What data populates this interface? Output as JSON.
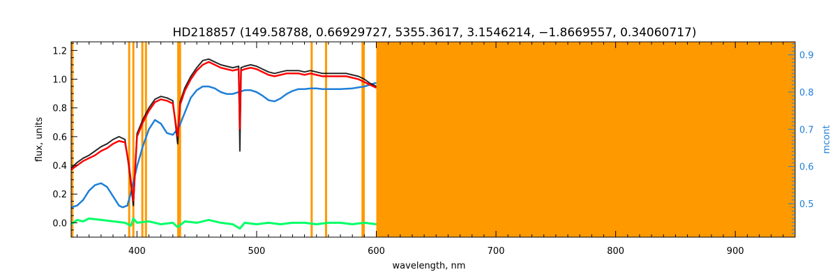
{
  "chart_data": {
    "type": "line",
    "title": "HD218857    (149.58788, 0.66929727, 5355.3617, 3.1546214, −1.8669557, 0.34060717)",
    "xlabel": "wavelength, nm",
    "ylabel": "flux, units",
    "ylabel_right": "mcont",
    "xlim": [
      345,
      950
    ],
    "ylim": [
      -0.1,
      1.26
    ],
    "ylim_right": [
      0.41,
      0.935
    ],
    "x_ticks": [
      400,
      500,
      600,
      700,
      800,
      900
    ],
    "y_ticks": [
      0.0,
      0.2,
      0.4,
      0.6,
      0.8,
      1.0,
      1.2
    ],
    "y_ticks_right": [
      0.5,
      0.6,
      0.7,
      0.8,
      0.9
    ],
    "grid": false,
    "colors": {
      "observed": "#000000",
      "model": "#ff0000",
      "residual": "#00ff66",
      "continuum": "#1e7fd8",
      "masked": "#ff9900",
      "right_axis": "#1e7fd8"
    },
    "masked_region": [
      600,
      950
    ],
    "masked_lines": [
      346,
      393.5,
      397,
      404.5,
      407.5,
      434.5,
      436,
      546,
      558,
      588.5,
      589.5
    ],
    "series": [
      {
        "role": "continuum",
        "axis": "right",
        "x": [
          345,
          350,
          355,
          360,
          365,
          370,
          375,
          380,
          385,
          388,
          392,
          395,
          400,
          405,
          410,
          415,
          420,
          425,
          430,
          435,
          440,
          445,
          450,
          455,
          460,
          465,
          470,
          475,
          480,
          485,
          490,
          495,
          500,
          505,
          510,
          515,
          520,
          525,
          530,
          535,
          540,
          545,
          550,
          555,
          560,
          570,
          580,
          590,
          600
        ],
        "y": [
          0.49,
          0.495,
          0.51,
          0.535,
          0.55,
          0.555,
          0.545,
          0.52,
          0.495,
          0.49,
          0.495,
          0.53,
          0.6,
          0.655,
          0.7,
          0.725,
          0.715,
          0.69,
          0.685,
          0.705,
          0.745,
          0.785,
          0.805,
          0.815,
          0.815,
          0.81,
          0.8,
          0.795,
          0.795,
          0.8,
          0.805,
          0.805,
          0.8,
          0.79,
          0.778,
          0.775,
          0.783,
          0.795,
          0.803,
          0.808,
          0.808,
          0.81,
          0.81,
          0.808,
          0.808,
          0.808,
          0.81,
          0.815,
          0.825
        ]
      },
      {
        "role": "model",
        "axis": "left",
        "x": [
          345,
          350,
          355,
          360,
          365,
          370,
          375,
          380,
          385,
          390,
          393,
          397,
          400,
          405,
          410,
          415,
          420,
          425,
          430,
          434,
          436,
          440,
          445,
          450,
          455,
          460,
          465,
          470,
          475,
          480,
          485,
          486,
          487,
          490,
          495,
          500,
          505,
          510,
          515,
          520,
          525,
          530,
          535,
          540,
          545,
          550,
          555,
          560,
          565,
          570,
          575,
          580,
          585,
          590,
          595,
          600
        ],
        "y": [
          0.37,
          0.4,
          0.43,
          0.45,
          0.47,
          0.5,
          0.52,
          0.55,
          0.57,
          0.56,
          0.42,
          0.15,
          0.6,
          0.7,
          0.78,
          0.84,
          0.86,
          0.85,
          0.83,
          0.6,
          0.82,
          0.92,
          1.0,
          1.06,
          1.1,
          1.12,
          1.1,
          1.08,
          1.07,
          1.06,
          1.07,
          0.65,
          1.06,
          1.07,
          1.08,
          1.07,
          1.05,
          1.03,
          1.02,
          1.03,
          1.04,
          1.04,
          1.04,
          1.03,
          1.04,
          1.03,
          1.02,
          1.02,
          1.02,
          1.02,
          1.02,
          1.01,
          1.0,
          0.98,
          0.96,
          0.94
        ]
      },
      {
        "role": "observed",
        "axis": "left",
        "x": [
          345,
          350,
          355,
          360,
          365,
          370,
          375,
          380,
          385,
          390,
          393,
          397,
          400,
          405,
          410,
          415,
          420,
          425,
          430,
          434,
          436,
          440,
          445,
          450,
          455,
          460,
          465,
          470,
          475,
          480,
          485,
          486,
          487,
          490,
          495,
          500,
          505,
          510,
          515,
          520,
          525,
          530,
          535,
          540,
          545,
          550,
          555,
          560,
          565,
          570,
          575,
          580,
          585,
          590,
          595,
          600
        ],
        "y": [
          0.38,
          0.42,
          0.45,
          0.47,
          0.5,
          0.53,
          0.55,
          0.58,
          0.6,
          0.58,
          0.4,
          0.12,
          0.62,
          0.72,
          0.8,
          0.86,
          0.88,
          0.87,
          0.85,
          0.55,
          0.84,
          0.94,
          1.02,
          1.08,
          1.13,
          1.14,
          1.12,
          1.1,
          1.09,
          1.08,
          1.09,
          0.5,
          1.08,
          1.09,
          1.1,
          1.09,
          1.07,
          1.05,
          1.04,
          1.05,
          1.06,
          1.06,
          1.06,
          1.05,
          1.06,
          1.05,
          1.04,
          1.04,
          1.04,
          1.04,
          1.04,
          1.03,
          1.02,
          1.0,
          0.97,
          0.95
        ]
      },
      {
        "role": "residual",
        "axis": "left",
        "x": [
          345,
          350,
          355,
          360,
          370,
          380,
          390,
          395,
          397,
          400,
          410,
          420,
          430,
          434,
          440,
          450,
          460,
          470,
          480,
          486,
          490,
          500,
          510,
          520,
          530,
          540,
          550,
          560,
          570,
          580,
          590,
          600
        ],
        "y": [
          -0.01,
          0.02,
          0.01,
          0.03,
          0.02,
          0.01,
          0.0,
          -0.02,
          0.03,
          0.0,
          0.01,
          -0.01,
          0.0,
          -0.03,
          0.01,
          0.0,
          0.02,
          0.0,
          -0.01,
          -0.04,
          0.0,
          -0.01,
          0.0,
          -0.01,
          0.0,
          0.0,
          -0.01,
          0.0,
          0.0,
          -0.01,
          0.0,
          -0.01
        ]
      }
    ]
  }
}
